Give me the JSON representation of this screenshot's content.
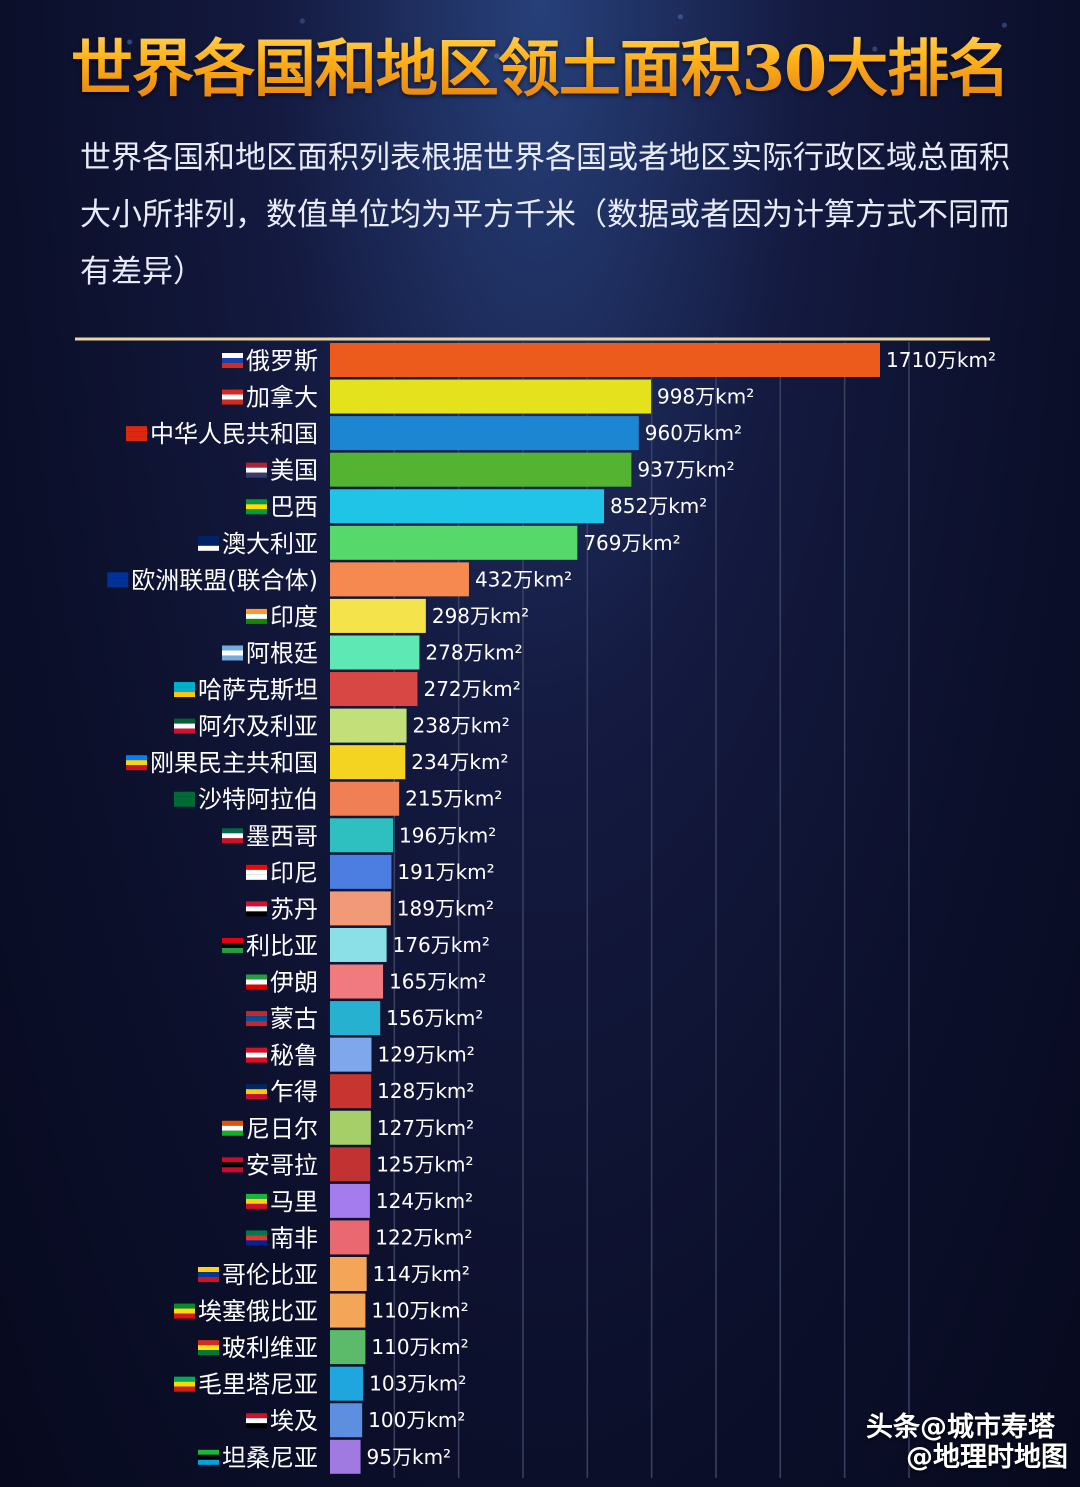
{
  "title": "世界各国和地区领土面积30大排名",
  "subtitle": "世界各国和地区面积列表根据世界各国或者地区实际行政区域总面积大小所排列，数值单位均为平方千米（数据或者因为计算方式不同而有差异）",
  "watermark": {
    "line1": "头条@城市寿塔",
    "line2": "@地理时地图"
  },
  "chart_data": {
    "type": "bar",
    "orientation": "horizontal",
    "title": "世界各国和地区领土面积30大排名",
    "value_suffix": "万km²",
    "xlim": [
      0,
      1800
    ],
    "grid": true,
    "categories": [
      "俄罗斯",
      "加拿大",
      "中华人民共和国",
      "美国",
      "巴西",
      "澳大利亚",
      "欧洲联盟(联合体)",
      "印度",
      "阿根廷",
      "哈萨克斯坦",
      "阿尔及利亚",
      "刚果民主共和国",
      "沙特阿拉伯",
      "墨西哥",
      "印尼",
      "苏丹",
      "利比亚",
      "伊朗",
      "蒙古",
      "秘鲁",
      "乍得",
      "尼日尔",
      "安哥拉",
      "马里",
      "南非",
      "哥伦比亚",
      "埃塞俄比亚",
      "玻利维亚",
      "毛里塔尼亚",
      "埃及",
      "坦桑尼亚"
    ],
    "values": [
      1710,
      998,
      960,
      937,
      852,
      769,
      432,
      298,
      278,
      272,
      238,
      234,
      215,
      196,
      191,
      189,
      176,
      165,
      156,
      129,
      128,
      127,
      125,
      124,
      122,
      114,
      110,
      110,
      103,
      100,
      95
    ],
    "value_labels": [
      "1710万km²",
      "998万km²",
      "960万km²",
      "937万km²",
      "852万km²",
      "769万km²",
      "432万km²",
      "298万km²",
      "278万km²",
      "272万km²",
      "238万km²",
      "234万km²",
      "215万km²",
      "196万km²",
      "191万km²",
      "189万km²",
      "176万km²",
      "165万km²",
      "156万km²",
      "129万km²",
      "128万km²",
      "127万km²",
      "125万km²",
      "124万km²",
      "122万km²",
      "114万km²",
      "110万km²",
      "110万km²",
      "103万km²",
      "100万km²",
      "95万km²"
    ],
    "colors": [
      "#ec5a1c",
      "#e4e11d",
      "#1d86d2",
      "#55b332",
      "#20c4e6",
      "#57d86a",
      "#f5894f",
      "#f5e34c",
      "#5ee8b4",
      "#d94744",
      "#c2df7a",
      "#f4d421",
      "#f07f55",
      "#2ec0c0",
      "#4b7ee0",
      "#f29a78",
      "#8ae0e6",
      "#f07a7e",
      "#27b1d0",
      "#7fa8ec",
      "#c83530",
      "#a6cf6a",
      "#c33232",
      "#a57cee",
      "#ea6870",
      "#f3a658",
      "#f3a658",
      "#5bbb6a",
      "#1fa6de",
      "#5d8fe0",
      "#a07ae0"
    ],
    "flags": [
      "russia-flag-icon",
      "canada-flag-icon",
      "china-flag-icon",
      "usa-flag-icon",
      "brazil-flag-icon",
      "australia-flag-icon",
      "eu-flag-icon",
      "india-flag-icon",
      "argentina-flag-icon",
      "kazakhstan-flag-icon",
      "algeria-flag-icon",
      "drc-flag-icon",
      "saudi-flag-icon",
      "mexico-flag-icon",
      "indonesia-flag-icon",
      "sudan-flag-icon",
      "libya-flag-icon",
      "iran-flag-icon",
      "mongolia-flag-icon",
      "peru-flag-icon",
      "chad-flag-icon",
      "niger-flag-icon",
      "angola-flag-icon",
      "mali-flag-icon",
      "south-africa-flag-icon",
      "colombia-flag-icon",
      "ethiopia-flag-icon",
      "bolivia-flag-icon",
      "mauritania-flag-icon",
      "egypt-flag-icon",
      "tanzania-flag-icon"
    ],
    "flag_colors": [
      [
        "#ffffff",
        "#1c3fa8",
        "#d52b1e"
      ],
      [
        "#d52b1e",
        "#ffffff",
        "#d52b1e"
      ],
      [
        "#de2910",
        "#de2910",
        "#de2910"
      ],
      [
        "#b22234",
        "#ffffff",
        "#3c3b6e"
      ],
      [
        "#009c3b",
        "#ffdf00",
        "#009c3b"
      ],
      [
        "#012169",
        "#012169",
        "#ffffff"
      ],
      [
        "#003399",
        "#003399",
        "#003399"
      ],
      [
        "#ff9933",
        "#ffffff",
        "#138808"
      ],
      [
        "#74acdf",
        "#ffffff",
        "#74acdf"
      ],
      [
        "#00afca",
        "#00afca",
        "#fec50c"
      ],
      [
        "#006233",
        "#ffffff",
        "#d21034"
      ],
      [
        "#007fff",
        "#f7d618",
        "#ce1021"
      ],
      [
        "#006c35",
        "#006c35",
        "#006c35"
      ],
      [
        "#006847",
        "#ffffff",
        "#ce1126"
      ],
      [
        "#ff0000",
        "#ffffff",
        "#ffffff"
      ],
      [
        "#d21034",
        "#ffffff",
        "#000000"
      ],
      [
        "#e70013",
        "#000000",
        "#239e46"
      ],
      [
        "#239f40",
        "#ffffff",
        "#da0000"
      ],
      [
        "#c4272f",
        "#015197",
        "#c4272f"
      ],
      [
        "#d91023",
        "#ffffff",
        "#d91023"
      ],
      [
        "#002664",
        "#fecb00",
        "#c60c30"
      ],
      [
        "#e05206",
        "#ffffff",
        "#0db02b"
      ],
      [
        "#cc092f",
        "#000000",
        "#cc092f"
      ],
      [
        "#14b53a",
        "#fcd116",
        "#ce1126"
      ],
      [
        "#007a4d",
        "#de3831",
        "#002395"
      ],
      [
        "#fcd116",
        "#003893",
        "#ce1126"
      ],
      [
        "#078930",
        "#fcdd09",
        "#da121a"
      ],
      [
        "#d52b1e",
        "#f9e300",
        "#007934"
      ],
      [
        "#00a95c",
        "#ffd700",
        "#d01c1f"
      ],
      [
        "#ce1126",
        "#ffffff",
        "#000000"
      ],
      [
        "#1eb53a",
        "#000000",
        "#00a3dd"
      ]
    ]
  }
}
